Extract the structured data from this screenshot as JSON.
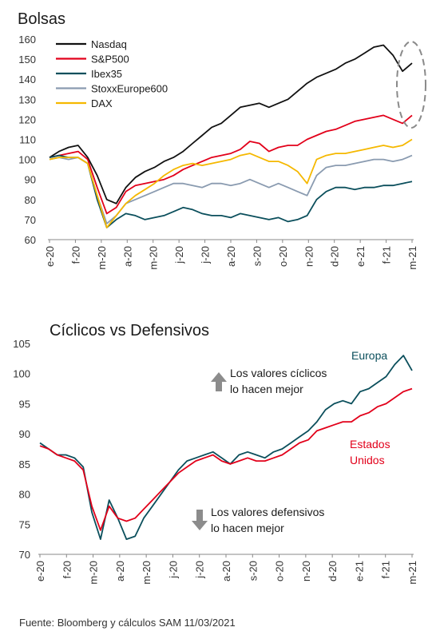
{
  "source": "Fuente: Bloomberg y cálculos SAM 11/03/2021",
  "chart_data": [
    {
      "type": "line",
      "title": "Bolsas",
      "x_ticks": [
        "e-20",
        "f-20",
        "m-20",
        "a-20",
        "m-20",
        "j-20",
        "j-20",
        "a-20",
        "s-20",
        "o-20",
        "n-20",
        "d-20",
        "e-21",
        "f-21",
        "m-21"
      ],
      "ylim": [
        60,
        160
      ],
      "y_ticks": [
        60,
        70,
        80,
        90,
        100,
        110,
        120,
        130,
        140,
        150,
        160
      ],
      "legend_position": "top-left",
      "annotation": "dashed ellipse highlighting the latest values",
      "series": [
        {
          "name": "Nasdaq",
          "color": "#111111",
          "values": [
            101,
            104,
            106,
            107,
            101,
            92,
            80,
            78,
            86,
            91,
            94,
            96,
            99,
            101,
            104,
            108,
            112,
            116,
            118,
            122,
            126,
            127,
            128,
            126,
            128,
            130,
            134,
            138,
            141,
            143,
            145,
            148,
            150,
            153,
            156,
            157,
            152,
            144,
            148
          ]
        },
        {
          "name": "S&P500",
          "color": "#e2001a",
          "values": [
            101,
            102,
            103,
            104,
            100,
            86,
            73,
            76,
            84,
            87,
            88,
            89,
            90,
            92,
            95,
            97,
            99,
            101,
            102,
            103,
            105,
            109,
            108,
            104,
            106,
            107,
            107,
            110,
            112,
            114,
            115,
            117,
            119,
            120,
            121,
            122,
            120,
            118,
            122
          ]
        },
        {
          "name": "Ibex35",
          "color": "#0b4f5c",
          "values": [
            101,
            102,
            101,
            101,
            98,
            80,
            66,
            70,
            73,
            72,
            70,
            71,
            72,
            74,
            76,
            75,
            73,
            72,
            72,
            71,
            73,
            72,
            71,
            70,
            71,
            69,
            70,
            72,
            80,
            84,
            86,
            86,
            85,
            86,
            86,
            87,
            87,
            88,
            89
          ]
        },
        {
          "name": "StoxxEurope600",
          "color": "#8a9bb0",
          "values": [
            100,
            101,
            100,
            101,
            98,
            82,
            68,
            72,
            78,
            80,
            82,
            84,
            86,
            88,
            88,
            87,
            86,
            88,
            88,
            87,
            88,
            90,
            88,
            86,
            88,
            86,
            84,
            82,
            92,
            96,
            97,
            97,
            98,
            99,
            100,
            100,
            99,
            100,
            102
          ]
        },
        {
          "name": "DAX",
          "color": "#f5b800",
          "values": [
            100,
            101,
            101,
            101,
            98,
            82,
            66,
            72,
            78,
            82,
            85,
            88,
            92,
            95,
            97,
            98,
            97,
            98,
            99,
            100,
            102,
            103,
            101,
            99,
            99,
            97,
            94,
            88,
            100,
            102,
            103,
            103,
            104,
            105,
            106,
            107,
            106,
            107,
            110
          ]
        }
      ]
    },
    {
      "type": "line",
      "title": "Cíclicos vs Defensivos",
      "x_ticks": [
        "e-20",
        "f-20",
        "m-20",
        "a-20",
        "m-20",
        "j-20",
        "j-20",
        "a-20",
        "s-20",
        "o-20",
        "n-20",
        "d-20",
        "e-21",
        "f-21",
        "m-21"
      ],
      "ylim": [
        70,
        105
      ],
      "y_ticks": [
        70,
        75,
        80,
        85,
        90,
        95,
        100,
        105
      ],
      "annotations": {
        "up_text": [
          "Los valores cíclicos",
          "lo hacen mejor"
        ],
        "down_text": [
          "Los valores defensivos",
          "lo hacen mejor"
        ],
        "europe_label": "Europa",
        "us_label": [
          "Estados",
          "Unidos"
        ]
      },
      "series": [
        {
          "name": "Europa",
          "color": "#0b4f5c",
          "values": [
            88.5,
            87.5,
            86.5,
            86.5,
            86,
            84.5,
            77,
            72.5,
            79,
            76,
            72.5,
            73,
            76,
            78,
            80,
            82,
            84,
            85.5,
            86,
            86.5,
            87,
            86,
            85,
            86.5,
            87,
            86.5,
            86,
            87,
            87.5,
            88.5,
            89.5,
            90.5,
            92,
            94,
            95,
            95.5,
            95,
            97,
            97.5,
            98.5,
            99.5,
            101.5,
            103,
            100.5
          ]
        },
        {
          "name": "Estados Unidos",
          "color": "#e2001a",
          "values": [
            88,
            87.5,
            86.5,
            86,
            85.5,
            84,
            78,
            74,
            78,
            76,
            75.5,
            76,
            77.5,
            79,
            80.5,
            82,
            83.5,
            84.5,
            85.5,
            86,
            86.5,
            85.5,
            85,
            85.5,
            86,
            85.5,
            85.5,
            86,
            86.5,
            87.5,
            88.5,
            89,
            90.5,
            91,
            91.5,
            92,
            92,
            93,
            93.5,
            94.5,
            95,
            96,
            97,
            97.5
          ]
        }
      ]
    }
  ]
}
